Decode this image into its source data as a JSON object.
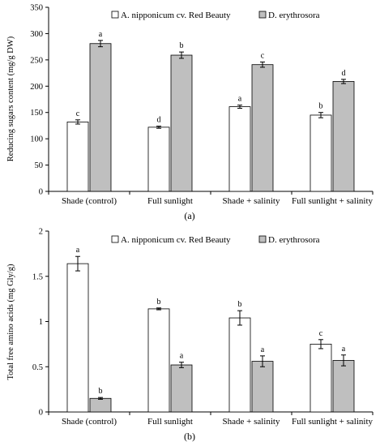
{
  "chart_data": [
    {
      "type": "bar",
      "panel_label": "(a)",
      "ylabel": "Reducing sugars content (mg/g DW)",
      "xlabel": "",
      "ylim": [
        0,
        350
      ],
      "yticks": [
        "0",
        "50",
        "100",
        "150",
        "200",
        "250",
        "300",
        "350"
      ],
      "categories": [
        "Shade (control)",
        "Full sunlight",
        "Shade + salinity",
        "Full sunlight + salinity"
      ],
      "legend_position": "top",
      "series": [
        {
          "name": "A. nipponicum cv. Red Beauty",
          "color": "#ffffff",
          "values": [
            132,
            122,
            161,
            145
          ],
          "errors": [
            4,
            2,
            3,
            5
          ],
          "letters": [
            "c",
            "d",
            "a",
            "b"
          ]
        },
        {
          "name": "D. erythrosora",
          "color": "#bfbfbf",
          "values": [
            281,
            259,
            241,
            209
          ],
          "errors": [
            6,
            6,
            5,
            4
          ],
          "letters": [
            "a",
            "b",
            "c",
            "d"
          ]
        }
      ]
    },
    {
      "type": "bar",
      "panel_label": "(b)",
      "ylabel": "Total free amino acids (mg Gly/g)",
      "xlabel": "",
      "ylim": [
        0,
        2
      ],
      "yticks": [
        "0",
        "0.5",
        "1",
        "1.5",
        "2"
      ],
      "categories": [
        "Shade (control)",
        "Full sunlight",
        "Shade + salinity",
        "Full sunlight + salinity"
      ],
      "legend_position": "top",
      "series": [
        {
          "name": "A. nipponicum cv. Red Beauty",
          "color": "#ffffff",
          "values": [
            1.64,
            1.14,
            1.04,
            0.75
          ],
          "errors": [
            0.08,
            0.01,
            0.08,
            0.05
          ],
          "letters": [
            "a",
            "b",
            "b",
            "c"
          ]
        },
        {
          "name": "D. erythrosora",
          "color": "#bfbfbf",
          "values": [
            0.15,
            0.52,
            0.56,
            0.57
          ],
          "errors": [
            0.01,
            0.03,
            0.06,
            0.06
          ],
          "letters": [
            "b",
            "a",
            "a",
            "a"
          ]
        }
      ]
    }
  ]
}
